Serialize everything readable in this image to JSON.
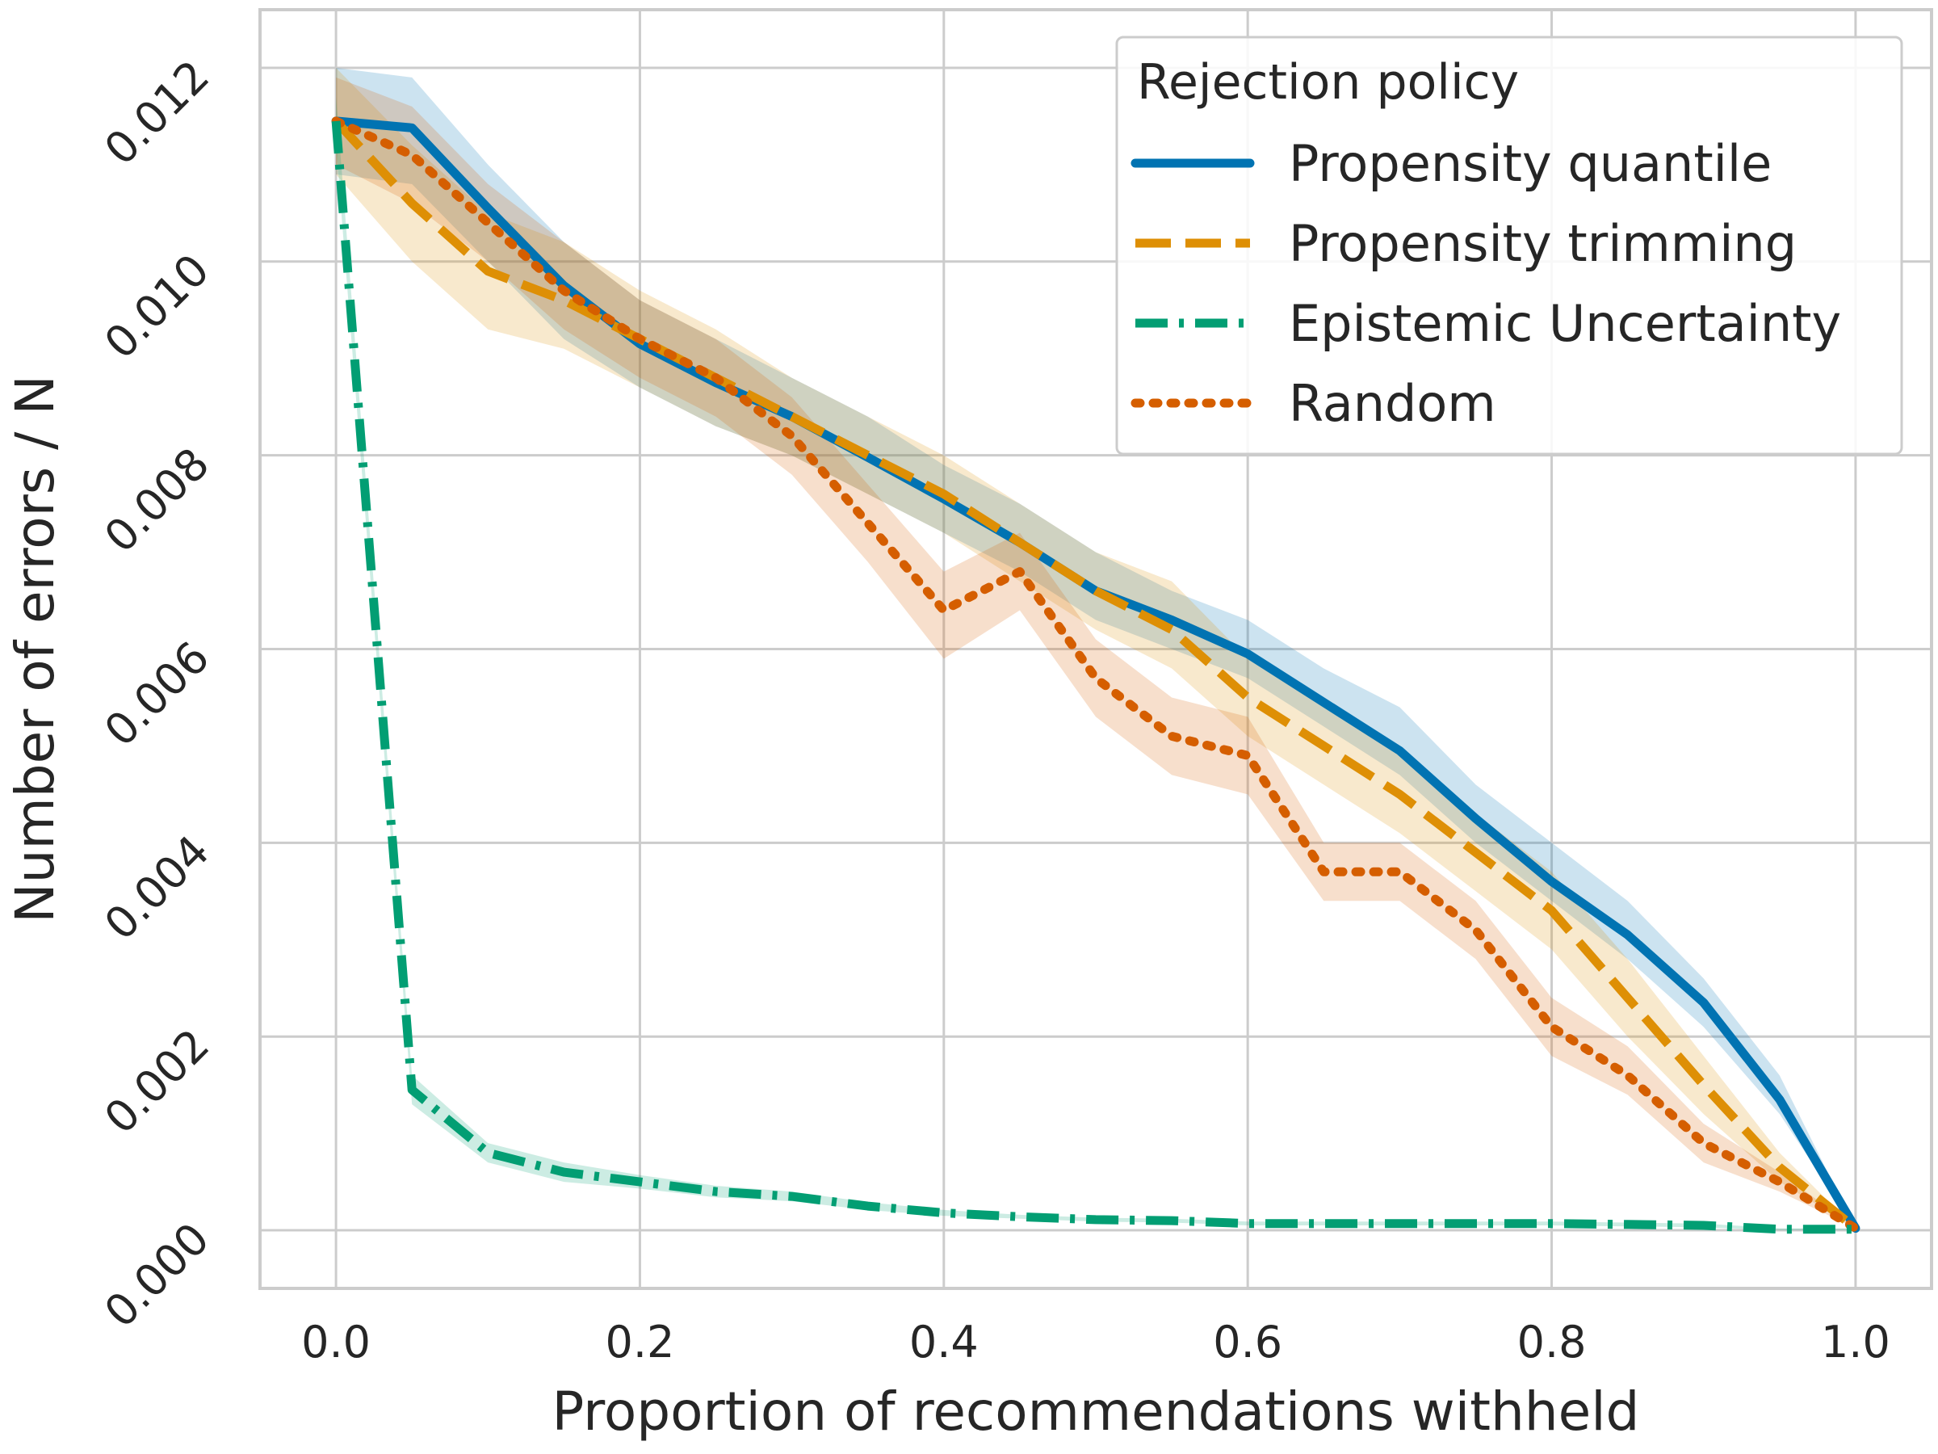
{
  "chart_data": {
    "type": "line",
    "title": "",
    "xlabel": "Proportion of recommendations withheld",
    "ylabel": "Number of errors / N",
    "xlim": [
      -0.05,
      1.05
    ],
    "ylim": [
      -0.0006,
      0.0126
    ],
    "grid": true,
    "x_ticks": [
      0.0,
      0.2,
      0.4,
      0.6,
      0.8,
      1.0
    ],
    "x_tick_labels": [
      "0.0",
      "0.2",
      "0.4",
      "0.6",
      "0.8",
      "1.0"
    ],
    "y_ticks": [
      0.0,
      0.002,
      0.004,
      0.006,
      0.008,
      0.01,
      0.012
    ],
    "y_tick_labels": [
      "0.000",
      "0.002",
      "0.004",
      "0.006",
      "0.008",
      "0.010",
      "0.012"
    ],
    "legend": {
      "title": "Rejection policy",
      "position": "top-right"
    },
    "x": [
      0.0,
      0.05,
      0.1,
      0.15,
      0.2,
      0.25,
      0.3,
      0.35,
      0.4,
      0.45,
      0.5,
      0.55,
      0.6,
      0.65,
      0.7,
      0.75,
      0.8,
      0.85,
      0.9,
      0.95,
      1.0
    ],
    "series": [
      {
        "name": "Propensity quantile",
        "color": "#0173b2",
        "dash": "solid",
        "values": [
          0.01145,
          0.01138,
          0.01055,
          0.00975,
          0.00915,
          0.00875,
          0.0084,
          0.00798,
          0.00755,
          0.0071,
          0.0066,
          0.0063,
          0.00595,
          0.00545,
          0.00495,
          0.00425,
          0.0036,
          0.00305,
          0.00235,
          0.00135,
          2e-05
        ],
        "band_low": [
          0.0109,
          0.0108,
          0.01,
          0.0092,
          0.0087,
          0.0083,
          0.008,
          0.0076,
          0.0072,
          0.0068,
          0.0063,
          0.006,
          0.0057,
          0.0052,
          0.0047,
          0.004,
          0.0034,
          0.0028,
          0.0021,
          0.0012,
          2e-05
        ],
        "band_high": [
          0.012,
          0.0119,
          0.011,
          0.0102,
          0.0096,
          0.0092,
          0.0088,
          0.0084,
          0.0079,
          0.0075,
          0.007,
          0.0066,
          0.0063,
          0.0058,
          0.0054,
          0.0046,
          0.004,
          0.0034,
          0.0026,
          0.0016,
          2e-05
        ]
      },
      {
        "name": "Propensity trimming",
        "color": "#de8f05",
        "dash": "dashed",
        "values": [
          0.01145,
          0.0106,
          0.0099,
          0.0096,
          0.0092,
          0.0088,
          0.0084,
          0.008,
          0.0076,
          0.0071,
          0.0066,
          0.0062,
          0.0055,
          0.005,
          0.0045,
          0.0039,
          0.0033,
          0.0024,
          0.0015,
          0.00065,
          2e-05
        ],
        "band_low": [
          0.0109,
          0.01,
          0.0093,
          0.0091,
          0.0087,
          0.0083,
          0.008,
          0.0076,
          0.0072,
          0.0067,
          0.0062,
          0.0058,
          0.0051,
          0.0046,
          0.0041,
          0.0035,
          0.0029,
          0.002,
          0.0012,
          0.0005,
          2e-05
        ],
        "band_high": [
          0.012,
          0.0112,
          0.0105,
          0.0102,
          0.0097,
          0.0093,
          0.0088,
          0.0084,
          0.008,
          0.0075,
          0.007,
          0.0067,
          0.0059,
          0.0054,
          0.0049,
          0.0043,
          0.0037,
          0.0028,
          0.0018,
          0.0008,
          2e-05
        ]
      },
      {
        "name": "Epistemic Uncertainty",
        "color": "#029e73",
        "dash": "dashdot",
        "values": [
          0.01145,
          0.00145,
          0.0008,
          0.0006,
          0.0005,
          0.0004,
          0.00035,
          0.00025,
          0.00018,
          0.00014,
          0.00011,
          0.0001,
          7e-05,
          7e-05,
          7e-05,
          7e-05,
          7e-05,
          6e-05,
          5e-05,
          1e-05,
          1e-05
        ],
        "band_low": [
          0.0112,
          0.0013,
          0.0007,
          0.0005,
          0.00043,
          0.00034,
          0.0003,
          0.00021,
          0.00015,
          0.00012,
          9e-05,
          8e-05,
          5e-05,
          5e-05,
          5e-05,
          5e-05,
          5e-05,
          4e-05,
          3e-05,
          0.0,
          0.0
        ],
        "band_high": [
          0.0117,
          0.0016,
          0.0009,
          0.0007,
          0.00057,
          0.00046,
          0.0004,
          0.00029,
          0.00021,
          0.00016,
          0.00013,
          0.00012,
          9e-05,
          9e-05,
          9e-05,
          9e-05,
          9e-05,
          8e-05,
          7e-05,
          2e-05,
          2e-05
        ]
      },
      {
        "name": "Random",
        "color": "#d55e00",
        "dash": "dotted",
        "values": [
          0.01145,
          0.0111,
          0.0104,
          0.0097,
          0.0092,
          0.0088,
          0.0082,
          0.0073,
          0.0064,
          0.0068,
          0.0057,
          0.0051,
          0.0049,
          0.0037,
          0.0037,
          0.0031,
          0.0021,
          0.0016,
          0.0009,
          0.0005,
          2e-05
        ],
        "band_low": [
          0.011,
          0.0106,
          0.01,
          0.0093,
          0.0088,
          0.0084,
          0.0078,
          0.0069,
          0.0059,
          0.0064,
          0.0053,
          0.0047,
          0.0045,
          0.0034,
          0.0034,
          0.0028,
          0.0018,
          0.0014,
          0.0007,
          0.0004,
          2e-05
        ],
        "band_high": [
          0.0119,
          0.0116,
          0.0108,
          0.0102,
          0.0096,
          0.0092,
          0.0086,
          0.0077,
          0.0068,
          0.0072,
          0.0061,
          0.0055,
          0.0053,
          0.004,
          0.004,
          0.0034,
          0.0024,
          0.0019,
          0.0011,
          0.0006,
          2e-05
        ]
      }
    ]
  }
}
